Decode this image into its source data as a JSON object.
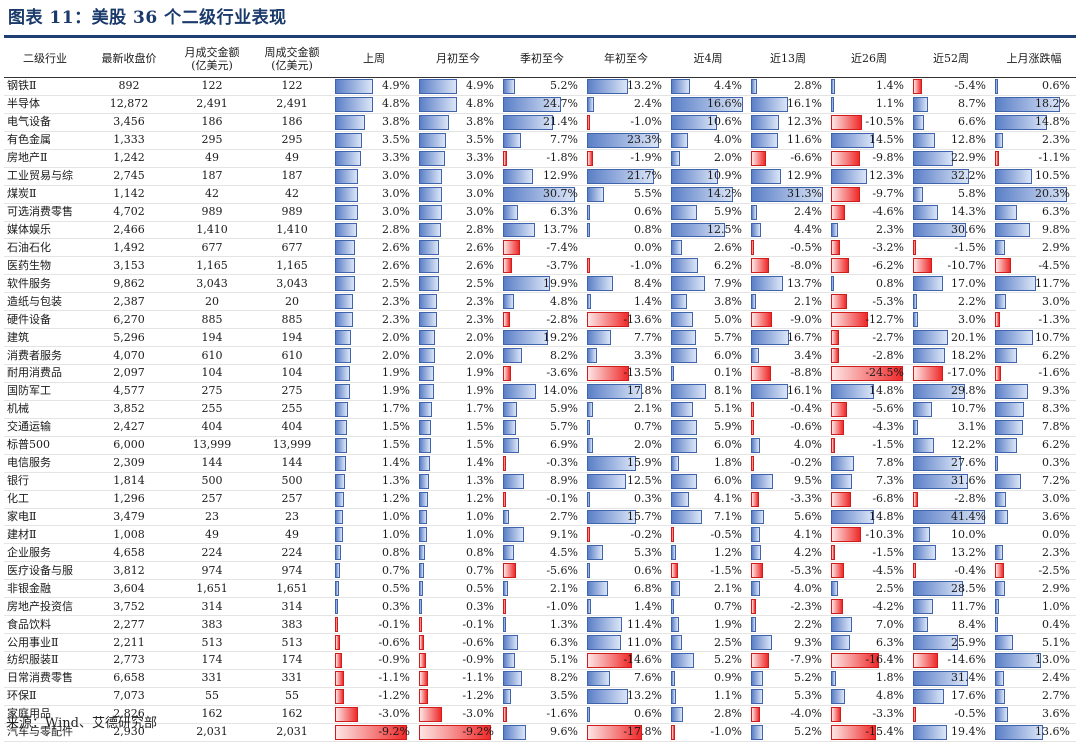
{
  "title": "图表 11：美股 36 个二级行业表现",
  "source": "来源：Wind、艾德研究部",
  "colors": {
    "positive_bar": "#5b7fc7",
    "negative_bar": "#ef2a2a",
    "header_rule": "#1f3f73"
  },
  "headers": [
    "二级行业",
    "最新收盘价",
    "月成交金额\n(亿美元)",
    "周成交金额\n(亿美元)",
    "上周",
    "月初至今",
    "季初至今",
    "年初至今",
    "近4周",
    "近13周",
    "近26周",
    "近52周",
    "上月涨跌幅"
  ],
  "rows": [
    [
      "钢铁Ⅱ",
      "892",
      "122",
      "122",
      "4.9%",
      "4.9%",
      "5.2%",
      "13.2%",
      "4.4%",
      "2.8%",
      "1.4%",
      "-5.4%",
      "0.6%"
    ],
    [
      "半导体",
      "12,872",
      "2,491",
      "2,491",
      "4.8%",
      "4.8%",
      "24.7%",
      "2.4%",
      "16.6%",
      "16.1%",
      "1.1%",
      "8.7%",
      "18.2%"
    ],
    [
      "电气设备",
      "3,456",
      "186",
      "186",
      "3.8%",
      "3.8%",
      "21.4%",
      "-1.0%",
      "10.6%",
      "12.3%",
      "-10.5%",
      "6.6%",
      "14.8%"
    ],
    [
      "有色金属",
      "1,333",
      "295",
      "295",
      "3.5%",
      "3.5%",
      "7.7%",
      "23.3%",
      "4.0%",
      "11.6%",
      "14.5%",
      "12.8%",
      "2.3%"
    ],
    [
      "房地产Ⅱ",
      "1,242",
      "49",
      "49",
      "3.3%",
      "3.3%",
      "-1.8%",
      "-1.9%",
      "2.0%",
      "-6.6%",
      "-9.8%",
      "22.9%",
      "-1.1%"
    ],
    [
      "工业贸易与综",
      "2,745",
      "187",
      "187",
      "3.0%",
      "3.0%",
      "12.9%",
      "21.7%",
      "10.9%",
      "12.9%",
      "12.3%",
      "32.2%",
      "10.5%"
    ],
    [
      "煤炭Ⅱ",
      "1,142",
      "42",
      "42",
      "3.0%",
      "3.0%",
      "30.7%",
      "5.5%",
      "14.2%",
      "31.3%",
      "-9.7%",
      "5.8%",
      "20.3%"
    ],
    [
      "可选消费零售",
      "4,702",
      "989",
      "989",
      "3.0%",
      "3.0%",
      "6.3%",
      "0.6%",
      "5.9%",
      "2.4%",
      "-4.6%",
      "14.3%",
      "6.3%"
    ],
    [
      "媒体娱乐",
      "2,466",
      "1,410",
      "1,410",
      "2.8%",
      "2.8%",
      "13.7%",
      "0.8%",
      "12.5%",
      "4.4%",
      "2.3%",
      "30.6%",
      "9.8%"
    ],
    [
      "石油石化",
      "1,492",
      "677",
      "677",
      "2.6%",
      "2.6%",
      "-7.4%",
      "0.0%",
      "2.6%",
      "-0.5%",
      "-3.2%",
      "-1.5%",
      "2.9%"
    ],
    [
      "医药生物",
      "3,153",
      "1,165",
      "1,165",
      "2.6%",
      "2.6%",
      "-3.7%",
      "-1.0%",
      "6.2%",
      "-8.0%",
      "-6.2%",
      "-10.7%",
      "-4.5%"
    ],
    [
      "软件服务",
      "9,862",
      "3,043",
      "3,043",
      "2.5%",
      "2.5%",
      "19.9%",
      "8.4%",
      "7.9%",
      "13.7%",
      "0.8%",
      "17.0%",
      "11.7%"
    ],
    [
      "造纸与包装",
      "2,387",
      "20",
      "20",
      "2.3%",
      "2.3%",
      "4.8%",
      "1.4%",
      "3.8%",
      "2.1%",
      "-5.3%",
      "2.2%",
      "3.0%"
    ],
    [
      "硬件设备",
      "6,270",
      "885",
      "885",
      "2.3%",
      "2.3%",
      "-2.8%",
      "-13.6%",
      "5.0%",
      "-9.0%",
      "-12.7%",
      "3.0%",
      "-1.3%"
    ],
    [
      "建筑",
      "5,296",
      "194",
      "194",
      "2.0%",
      "2.0%",
      "19.2%",
      "7.7%",
      "5.7%",
      "16.7%",
      "-2.7%",
      "20.1%",
      "10.7%"
    ],
    [
      "消费者服务",
      "4,070",
      "610",
      "610",
      "2.0%",
      "2.0%",
      "8.2%",
      "3.3%",
      "6.0%",
      "3.4%",
      "-2.8%",
      "18.2%",
      "6.2%"
    ],
    [
      "耐用消费品",
      "2,097",
      "104",
      "104",
      "1.9%",
      "1.9%",
      "-3.6%",
      "-13.5%",
      "0.1%",
      "-8.8%",
      "-24.5%",
      "-17.0%",
      "-1.6%"
    ],
    [
      "国防军工",
      "4,577",
      "275",
      "275",
      "1.9%",
      "1.9%",
      "14.0%",
      "17.8%",
      "8.1%",
      "16.1%",
      "14.8%",
      "29.8%",
      "9.3%"
    ],
    [
      "机械",
      "3,852",
      "255",
      "255",
      "1.7%",
      "1.7%",
      "5.9%",
      "2.1%",
      "5.1%",
      "-0.4%",
      "-5.6%",
      "10.7%",
      "8.3%"
    ],
    [
      "交通运输",
      "2,427",
      "404",
      "404",
      "1.5%",
      "1.5%",
      "5.7%",
      "0.7%",
      "5.9%",
      "-0.6%",
      "-4.3%",
      "3.1%",
      "7.8%"
    ],
    [
      "标普500",
      "6,000",
      "13,999",
      "13,999",
      "1.5%",
      "1.5%",
      "6.9%",
      "2.0%",
      "6.0%",
      "4.0%",
      "-1.5%",
      "12.2%",
      "6.2%"
    ],
    [
      "电信服务",
      "2,309",
      "144",
      "144",
      "1.4%",
      "1.4%",
      "-0.3%",
      "15.9%",
      "1.8%",
      "-0.2%",
      "7.8%",
      "27.6%",
      "0.3%"
    ],
    [
      "银行",
      "1,814",
      "500",
      "500",
      "1.3%",
      "1.3%",
      "8.9%",
      "12.5%",
      "6.0%",
      "9.5%",
      "7.3%",
      "31.6%",
      "7.2%"
    ],
    [
      "化工",
      "1,296",
      "257",
      "257",
      "1.2%",
      "1.2%",
      "-0.1%",
      "0.3%",
      "4.1%",
      "-3.3%",
      "-6.8%",
      "-2.8%",
      "3.0%"
    ],
    [
      "家电Ⅱ",
      "3,479",
      "23",
      "23",
      "1.0%",
      "1.0%",
      "2.7%",
      "15.7%",
      "7.1%",
      "5.6%",
      "14.8%",
      "41.4%",
      "3.6%"
    ],
    [
      "建材Ⅱ",
      "1,008",
      "49",
      "49",
      "1.0%",
      "1.0%",
      "9.1%",
      "-0.2%",
      "-0.5%",
      "4.1%",
      "-10.3%",
      "10.0%",
      "0.0%"
    ],
    [
      "企业服务",
      "4,658",
      "224",
      "224",
      "0.8%",
      "0.8%",
      "4.5%",
      "5.3%",
      "1.2%",
      "4.2%",
      "-1.5%",
      "13.2%",
      "2.3%"
    ],
    [
      "医疗设备与服",
      "3,812",
      "974",
      "974",
      "0.7%",
      "0.7%",
      "-5.6%",
      "0.6%",
      "-1.5%",
      "-5.3%",
      "-4.5%",
      "-0.4%",
      "-2.5%"
    ],
    [
      "非银金融",
      "3,604",
      "1,651",
      "1,651",
      "0.5%",
      "0.5%",
      "2.1%",
      "6.8%",
      "2.1%",
      "4.0%",
      "2.5%",
      "28.5%",
      "2.9%"
    ],
    [
      "房地产投资信",
      "3,752",
      "314",
      "314",
      "0.3%",
      "0.3%",
      "-1.0%",
      "1.4%",
      "0.7%",
      "-2.3%",
      "-4.2%",
      "11.7%",
      "1.0%"
    ],
    [
      "食品饮料",
      "2,277",
      "383",
      "383",
      "-0.1%",
      "-0.1%",
      "1.3%",
      "11.4%",
      "1.9%",
      "2.2%",
      "7.0%",
      "8.4%",
      "0.4%"
    ],
    [
      "公用事业Ⅱ",
      "2,211",
      "513",
      "513",
      "-0.6%",
      "-0.6%",
      "6.3%",
      "11.0%",
      "2.5%",
      "9.3%",
      "6.3%",
      "25.9%",
      "5.1%"
    ],
    [
      "纺织服装Ⅱ",
      "2,773",
      "174",
      "174",
      "-0.9%",
      "-0.9%",
      "5.1%",
      "-14.6%",
      "5.2%",
      "-7.9%",
      "-16.4%",
      "-14.6%",
      "13.0%"
    ],
    [
      "日常消费零售",
      "6,658",
      "331",
      "331",
      "-1.1%",
      "-1.1%",
      "8.2%",
      "7.6%",
      "0.9%",
      "5.2%",
      "1.8%",
      "31.4%",
      "2.4%"
    ],
    [
      "环保Ⅱ",
      "7,073",
      "55",
      "55",
      "-1.2%",
      "-1.2%",
      "3.5%",
      "13.2%",
      "1.1%",
      "5.3%",
      "4.8%",
      "17.6%",
      "2.7%"
    ],
    [
      "家庭用品",
      "2,826",
      "162",
      "162",
      "-3.0%",
      "-3.0%",
      "-1.6%",
      "0.6%",
      "2.8%",
      "-4.0%",
      "-3.3%",
      "-0.5%",
      "3.6%"
    ],
    [
      "汽车与零配件",
      "2,930",
      "2,031",
      "2,031",
      "-9.2%",
      "-9.2%",
      "9.6%",
      "-17.8%",
      "-1.0%",
      "5.2%",
      "-15.4%",
      "19.4%",
      "13.6%"
    ]
  ]
}
